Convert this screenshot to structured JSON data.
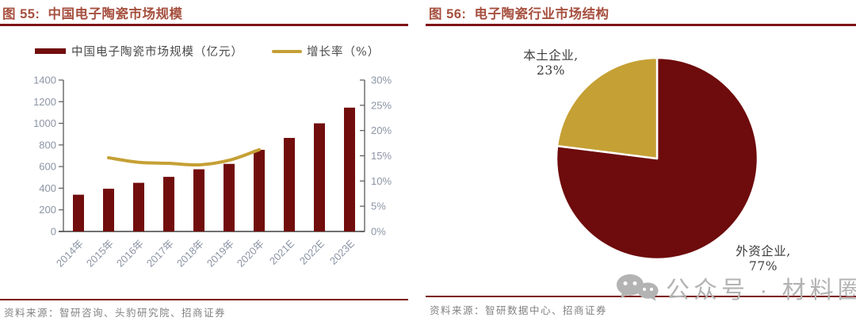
{
  "panels": {
    "left": {
      "figure_label": "图 55:",
      "source": "资料来源：智研咨询、头豹研究院、招商证券"
    },
    "right": {
      "figure_label": "图 56:",
      "source": "资料来源：智研数据中心、招商证券"
    }
  },
  "watermark": {
    "icon": "wechat-chat-bubbles",
    "text": "公众号 · 材料圈"
  },
  "chart_data": [
    {
      "id": "china-electronic-ceramics-market-size",
      "type": "bar",
      "title": "中国电子陶瓷市场规模",
      "categories": [
        "2014年",
        "2015年",
        "2016年",
        "2017年",
        "2018年",
        "2019年",
        "2020年",
        "2021E",
        "2022E",
        "2023E"
      ],
      "series": [
        {
          "name": "中国电子陶瓷市场规模（亿元）",
          "type": "bar",
          "axis": "left",
          "color": "#720D0D",
          "values": [
            340,
            395,
            450,
            505,
            575,
            625,
            755,
            865,
            1000,
            1145
          ]
        },
        {
          "name": "增长率（%）",
          "type": "line",
          "axis": "right",
          "color": "#C5A034",
          "start_category_index": 1,
          "x_categories": [
            "2015年",
            "2016年",
            "2017年",
            "2018年",
            "2019年",
            "2020年"
          ],
          "values": [
            14.6,
            13.7,
            13.5,
            13.2,
            14.1,
            16.2
          ]
        }
      ],
      "left_axis": {
        "min": 0,
        "max": 1400,
        "step": 200,
        "suffix": ""
      },
      "right_axis": {
        "min": 0,
        "max": 30,
        "step": 5,
        "suffix": "%"
      },
      "grid": false,
      "legend_position": "top"
    },
    {
      "id": "electronic-ceramics-market-structure",
      "type": "pie",
      "title": "电子陶瓷行业市场结构",
      "slices": [
        {
          "name": "外资企业",
          "label_line": "外资企业,",
          "pct_text": "77%",
          "value": 77,
          "color": "#6E0B0C"
        },
        {
          "name": "本土企业",
          "label_line": "本土企业,",
          "pct_text": "23%",
          "value": 23,
          "color": "#C5A034"
        }
      ],
      "start_angle": "12-oclock",
      "direction": "clockwise"
    }
  ],
  "colors": {
    "title_red": "#A6503F",
    "rule_red": "#7E1316",
    "bar_maroon": "#720D0D",
    "line_gold": "#C5A034",
    "pie_red": "#6E0B0C",
    "pie_gold": "#C5A034",
    "axis_text": "#8C95A5",
    "axis_line": "#595959",
    "baseline": "#404040",
    "legend_text": "#4A4A4A",
    "source_text": "#828282",
    "watermark_gray": "#B3B3B3"
  }
}
